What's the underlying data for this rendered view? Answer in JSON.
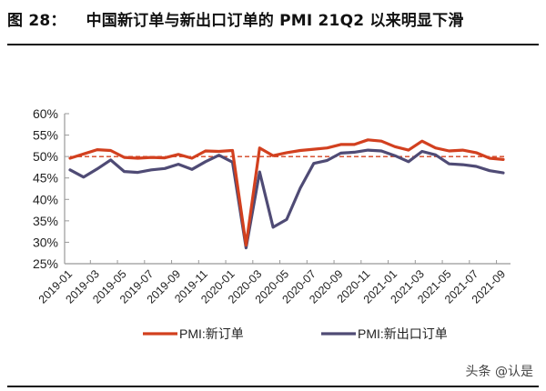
{
  "header": {
    "figure_number": "图 28：",
    "title": "中国新订单与新出口订单的 PMI 21Q2 以来明显下滑"
  },
  "watermark": "头条 @认是",
  "colors": {
    "new_orders": "#d2401f",
    "new_export_orders": "#4f4b75",
    "reference_line": "#d2401f",
    "axis": "#999999"
  },
  "chart_data": {
    "type": "line",
    "title": "中国新订单与新出口订单的 PMI 21Q2 以来明显下滑",
    "xlabel": "",
    "ylabel": "",
    "ylim": [
      25,
      60
    ],
    "yticks": [
      "25%",
      "30%",
      "35%",
      "40%",
      "45%",
      "50%",
      "55%",
      "60%"
    ],
    "x": [
      "2019-01",
      "2019-02",
      "2019-03",
      "2019-04",
      "2019-05",
      "2019-06",
      "2019-07",
      "2019-08",
      "2019-09",
      "2019-10",
      "2019-11",
      "2019-12",
      "2020-01",
      "2020-02",
      "2020-03",
      "2020-04",
      "2020-05",
      "2020-06",
      "2020-07",
      "2020-08",
      "2020-09",
      "2020-10",
      "2020-11",
      "2020-12",
      "2021-01",
      "2021-02",
      "2021-03",
      "2021-04",
      "2021-05",
      "2021-06",
      "2021-07",
      "2021-08",
      "2021-09"
    ],
    "xtick_labels": [
      "2019-01",
      "2019-03",
      "2019-05",
      "2019-07",
      "2019-09",
      "2019-11",
      "2020-01",
      "2020-03",
      "2020-05",
      "2020-07",
      "2020-09",
      "2020-11",
      "2021-01",
      "2021-03",
      "2021-05",
      "2021-07",
      "2021-09"
    ],
    "series": [
      {
        "name": "PMI:新订单",
        "values": [
          49.6,
          50.6,
          51.6,
          51.4,
          49.8,
          49.6,
          49.8,
          49.7,
          50.5,
          49.6,
          51.3,
          51.2,
          51.4,
          29.3,
          52.0,
          50.2,
          50.9,
          51.4,
          51.7,
          52.0,
          52.8,
          52.8,
          53.9,
          53.6,
          52.3,
          51.5,
          53.6,
          52.0,
          51.3,
          51.5,
          50.9,
          49.6,
          49.3
        ]
      },
      {
        "name": "PMI:新出口订单",
        "values": [
          46.9,
          45.2,
          47.1,
          49.2,
          46.5,
          46.3,
          46.9,
          47.2,
          48.2,
          47.0,
          48.8,
          50.3,
          48.7,
          28.7,
          46.4,
          33.5,
          35.3,
          42.6,
          48.4,
          49.1,
          50.8,
          51.0,
          51.5,
          51.3,
          50.2,
          48.8,
          51.2,
          50.4,
          48.3,
          48.1,
          47.7,
          46.7,
          46.2
        ]
      }
    ],
    "reference_line": {
      "value": 50,
      "style": "dashed"
    },
    "legend": {
      "position": "bottom",
      "entries": [
        "PMI:新订单",
        "PMI:新出口订单"
      ]
    },
    "grid": false
  }
}
